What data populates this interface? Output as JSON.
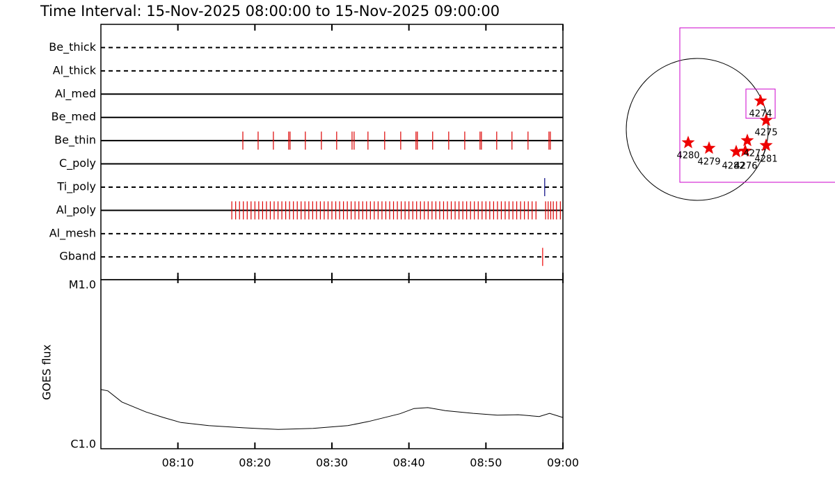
{
  "title": "Time Interval: 15-Nov-2025 08:00:00 to 15-Nov-2025 09:00:00",
  "chart_data": [
    {
      "type": "timeline",
      "xlim": [
        "08:00:00",
        "09:00:00"
      ],
      "rows": [
        {
          "name": "Be_thick",
          "line_style": "dashed",
          "color": "#dd0000",
          "events": []
        },
        {
          "name": "Al_thick",
          "line_style": "dashed",
          "color": "#dd0000",
          "events": []
        },
        {
          "name": "Al_med",
          "line_style": "solid",
          "color": "#dd0000",
          "events": []
        },
        {
          "name": "Be_med",
          "line_style": "solid",
          "color": "#dd0000",
          "events": []
        },
        {
          "name": "Be_thin",
          "line_style": "solid",
          "color": "#dd0000",
          "events": [
            "08:18:26",
            "08:20:25",
            "08:22:24",
            "08:24:23",
            "08:24:34",
            "08:26:33",
            "08:28:38",
            "08:30:37",
            "08:32:37",
            "08:32:53",
            "08:34:41",
            "08:36:51",
            "08:38:56",
            "08:40:55",
            "08:41:06",
            "08:43:05",
            "08:45:10",
            "08:47:15",
            "08:49:14",
            "08:49:25",
            "08:51:24",
            "08:53:23",
            "08:55:28",
            "08:58:11",
            "08:58:22"
          ]
        },
        {
          "name": "C_poly",
          "line_style": "solid",
          "color": "#dd0000",
          "events": []
        },
        {
          "name": "Ti_poly",
          "line_style": "dashed",
          "color": "#000080",
          "events": [
            "08:57:38"
          ]
        },
        {
          "name": "Al_poly",
          "line_style": "solid",
          "color": "#dd0000",
          "events": [
            "08:17:00",
            "08:17:30",
            "08:18:00",
            "08:18:30",
            "08:19:00",
            "08:19:30",
            "08:20:00",
            "08:20:30",
            "08:21:00",
            "08:21:30",
            "08:22:00",
            "08:22:30",
            "08:23:00",
            "08:23:30",
            "08:24:00",
            "08:24:30",
            "08:25:00",
            "08:25:30",
            "08:26:00",
            "08:26:30",
            "08:27:00",
            "08:27:30",
            "08:28:00",
            "08:28:30",
            "08:29:00",
            "08:29:30",
            "08:30:00",
            "08:30:30",
            "08:31:00",
            "08:31:30",
            "08:32:00",
            "08:32:30",
            "08:33:00",
            "08:33:30",
            "08:34:00",
            "08:34:30",
            "08:35:00",
            "08:35:30",
            "08:36:00",
            "08:36:30",
            "08:37:00",
            "08:37:30",
            "08:38:00",
            "08:38:30",
            "08:39:00",
            "08:39:30",
            "08:40:00",
            "08:40:30",
            "08:41:00",
            "08:41:30",
            "08:42:00",
            "08:42:30",
            "08:43:00",
            "08:43:30",
            "08:44:00",
            "08:44:30",
            "08:45:00",
            "08:45:30",
            "08:46:00",
            "08:46:30",
            "08:47:00",
            "08:47:30",
            "08:48:00",
            "08:48:30",
            "08:49:00",
            "08:49:30",
            "08:50:00",
            "08:50:30",
            "08:51:00",
            "08:51:30",
            "08:52:00",
            "08:52:30",
            "08:53:00",
            "08:53:30",
            "08:54:00",
            "08:54:30",
            "08:55:00",
            "08:55:30",
            "08:56:00",
            "08:56:30",
            "08:57:45",
            "08:58:05",
            "08:58:25",
            "08:58:45",
            "08:59:10",
            "08:59:40"
          ]
        },
        {
          "name": "Al_mesh",
          "line_style": "dashed",
          "color": "#dd0000",
          "events": []
        },
        {
          "name": "Gband",
          "line_style": "dashed",
          "color": "#ee0000",
          "events": [
            "08:57:22"
          ]
        }
      ]
    },
    {
      "type": "line",
      "ylabel": "GOES flux",
      "log_y": true,
      "color": "#000000",
      "xlim": [
        "08:00:00",
        "09:00:00"
      ],
      "xticks": [
        "08:10",
        "08:20",
        "08:30",
        "08:40",
        "08:50",
        "09:00"
      ],
      "ylim": [
        1e-06,
        1e-05
      ],
      "yticks": [
        {
          "value": 1e-06,
          "label": "C1.0"
        },
        {
          "value": 1e-05,
          "label": "M1.0"
        }
      ],
      "x": [
        "08:00:00",
        "08:00:54",
        "08:02:43",
        "08:05:52",
        "08:08:08",
        "08:10:23",
        "08:14:00",
        "08:18:31",
        "08:23:02",
        "08:27:33",
        "08:32:04",
        "08:34:47",
        "08:38:50",
        "08:40:39",
        "08:42:27",
        "08:44:43",
        "08:48:20",
        "08:51:29",
        "08:54:12",
        "08:56:55",
        "08:58:16",
        "09:00:00"
      ],
      "values": [
        2.24e-06,
        2.2e-06,
        1.89e-06,
        1.65e-06,
        1.53e-06,
        1.43e-06,
        1.37e-06,
        1.33e-06,
        1.3e-06,
        1.32e-06,
        1.37e-06,
        1.45e-06,
        1.61e-06,
        1.73e-06,
        1.75e-06,
        1.68e-06,
        1.62e-06,
        1.58e-06,
        1.59e-06,
        1.55e-06,
        1.62e-06,
        1.53e-06
      ]
    }
  ],
  "solar_map": {
    "regions": [
      "4274",
      "4275",
      "4280",
      "4279",
      "4282",
      "4276",
      "4277",
      "4281"
    ]
  }
}
